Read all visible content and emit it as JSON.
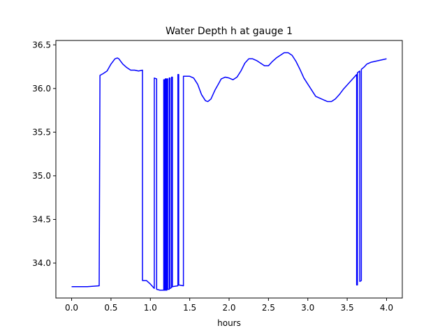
{
  "chart_data": {
    "type": "line",
    "title": "Water Depth h at gauge 1",
    "xlabel": "hours",
    "ylabel": "",
    "xlim": [
      -0.2,
      4.2
    ],
    "ylim": [
      33.6,
      36.55
    ],
    "xticks": [
      0.0,
      0.5,
      1.0,
      1.5,
      2.0,
      2.5,
      3.0,
      3.5,
      4.0
    ],
    "xtick_labels": [
      "0.0",
      "0.5",
      "1.0",
      "1.5",
      "2.0",
      "2.5",
      "3.0",
      "3.5",
      "4.0"
    ],
    "yticks": [
      34.0,
      34.5,
      35.0,
      35.5,
      36.0,
      36.5
    ],
    "ytick_labels": [
      "34.0",
      "34.5",
      "35.0",
      "35.5",
      "36.0",
      "36.5"
    ],
    "grid": false,
    "series": [
      {
        "name": "",
        "color": "#0000ff",
        "points": [
          [
            0.0,
            33.73
          ],
          [
            0.2,
            33.73
          ],
          [
            0.35,
            33.74
          ],
          [
            0.36,
            36.15
          ],
          [
            0.4,
            36.17
          ],
          [
            0.45,
            36.2
          ],
          [
            0.5,
            36.28
          ],
          [
            0.55,
            36.34
          ],
          [
            0.58,
            36.35
          ],
          [
            0.6,
            36.34
          ],
          [
            0.65,
            36.28
          ],
          [
            0.7,
            36.24
          ],
          [
            0.75,
            36.21
          ],
          [
            0.8,
            36.21
          ],
          [
            0.85,
            36.2
          ],
          [
            0.9,
            36.21
          ],
          [
            0.9,
            33.8
          ],
          [
            0.95,
            33.8
          ],
          [
            1.0,
            33.76
          ],
          [
            1.05,
            33.71
          ],
          [
            1.05,
            36.12
          ],
          [
            1.08,
            36.11
          ],
          [
            1.08,
            33.7
          ],
          [
            1.12,
            33.69
          ],
          [
            1.17,
            33.69
          ],
          [
            1.17,
            36.1
          ],
          [
            1.18,
            36.1
          ],
          [
            1.18,
            33.69
          ],
          [
            1.19,
            33.69
          ],
          [
            1.19,
            36.11
          ],
          [
            1.2,
            36.11
          ],
          [
            1.2,
            33.69
          ],
          [
            1.21,
            33.69
          ],
          [
            1.21,
            36.11
          ],
          [
            1.22,
            36.11
          ],
          [
            1.22,
            33.7
          ],
          [
            1.24,
            33.7
          ],
          [
            1.24,
            36.12
          ],
          [
            1.25,
            36.12
          ],
          [
            1.25,
            33.71
          ],
          [
            1.27,
            33.72
          ],
          [
            1.27,
            36.13
          ],
          [
            1.28,
            36.13
          ],
          [
            1.28,
            33.73
          ],
          [
            1.35,
            33.74
          ],
          [
            1.35,
            36.16
          ],
          [
            1.36,
            36.16
          ],
          [
            1.36,
            33.75
          ],
          [
            1.42,
            33.74
          ],
          [
            1.42,
            36.14
          ],
          [
            1.5,
            36.14
          ],
          [
            1.55,
            36.12
          ],
          [
            1.6,
            36.05
          ],
          [
            1.65,
            35.93
          ],
          [
            1.7,
            35.86
          ],
          [
            1.73,
            35.85
          ],
          [
            1.77,
            35.88
          ],
          [
            1.82,
            35.98
          ],
          [
            1.87,
            36.06
          ],
          [
            1.9,
            36.11
          ],
          [
            1.95,
            36.13
          ],
          [
            2.0,
            36.12
          ],
          [
            2.05,
            36.1
          ],
          [
            2.1,
            36.13
          ],
          [
            2.15,
            36.2
          ],
          [
            2.2,
            36.29
          ],
          [
            2.25,
            36.34
          ],
          [
            2.3,
            36.34
          ],
          [
            2.35,
            36.32
          ],
          [
            2.4,
            36.29
          ],
          [
            2.45,
            36.26
          ],
          [
            2.5,
            36.26
          ],
          [
            2.55,
            36.31
          ],
          [
            2.6,
            36.35
          ],
          [
            2.65,
            36.38
          ],
          [
            2.7,
            36.41
          ],
          [
            2.75,
            36.41
          ],
          [
            2.8,
            36.38
          ],
          [
            2.85,
            36.31
          ],
          [
            2.9,
            36.22
          ],
          [
            2.95,
            36.12
          ],
          [
            3.0,
            36.05
          ],
          [
            3.05,
            35.98
          ],
          [
            3.1,
            35.91
          ],
          [
            3.15,
            35.89
          ],
          [
            3.2,
            35.87
          ],
          [
            3.25,
            35.85
          ],
          [
            3.3,
            35.85
          ],
          [
            3.35,
            35.88
          ],
          [
            3.4,
            35.93
          ],
          [
            3.45,
            35.99
          ],
          [
            3.5,
            36.04
          ],
          [
            3.55,
            36.09
          ],
          [
            3.6,
            36.14
          ],
          [
            3.62,
            36.16
          ],
          [
            3.62,
            33.75
          ],
          [
            3.63,
            33.75
          ],
          [
            3.63,
            36.18
          ],
          [
            3.66,
            36.2
          ],
          [
            3.66,
            33.79
          ],
          [
            3.68,
            33.8
          ],
          [
            3.68,
            36.22
          ],
          [
            3.72,
            36.25
          ],
          [
            3.75,
            36.28
          ],
          [
            3.8,
            36.3
          ],
          [
            3.85,
            36.31
          ],
          [
            3.9,
            36.32
          ],
          [
            3.95,
            36.33
          ],
          [
            4.0,
            36.34
          ]
        ]
      }
    ]
  }
}
